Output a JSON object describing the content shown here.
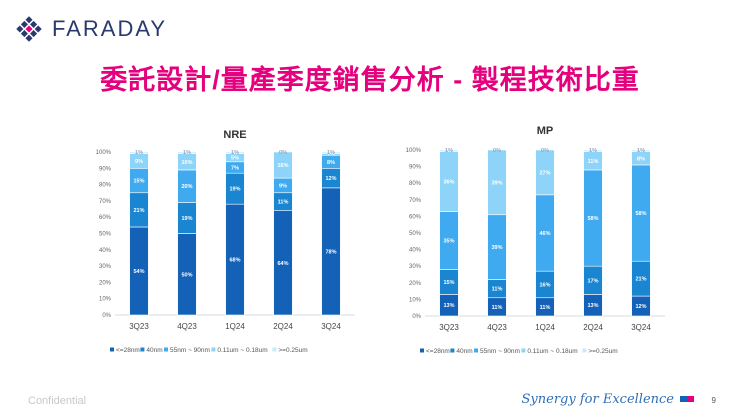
{
  "brand": {
    "name": "FARADAY"
  },
  "slide_title": "委託設計/量產季度銷售分析 - 製程技術比重",
  "footer": {
    "confidential": "Confidential",
    "tagline": "Synergy for Excellence",
    "page_number": "9"
  },
  "colors": {
    "title": "#e5007e",
    "s28": "#1461b8",
    "s40": "#1a86d2",
    "s55": "#40aaf0",
    "s011": "#8ed4f8",
    "s025": "#c5ebfc"
  },
  "chart_data": [
    {
      "type": "bar",
      "stacked": true,
      "title": "NRE",
      "categories": [
        "3Q23",
        "4Q23",
        "1Q24",
        "2Q24",
        "3Q24"
      ],
      "ylim": [
        0,
        100
      ],
      "yticks": [
        "0%",
        "10%",
        "20%",
        "30%",
        "40%",
        "50%",
        "60%",
        "70%",
        "80%",
        "90%",
        "100%"
      ],
      "series": [
        {
          "name": "<=28nm",
          "values": [
            54,
            50,
            68,
            64,
            78
          ],
          "labels": [
            "54%",
            "50%",
            "68%",
            "64%",
            "78%"
          ]
        },
        {
          "name": "40nm",
          "values": [
            21,
            19,
            19,
            11,
            12
          ],
          "labels": [
            "21%",
            "19%",
            "19%",
            "11%",
            "12%"
          ]
        },
        {
          "name": "55nm ~ 90nm",
          "values": [
            15,
            20,
            7,
            9,
            8
          ],
          "labels": [
            "15%",
            "20%",
            "7%",
            "9%",
            "8%"
          ]
        },
        {
          "name": "0.11um ~ 0.18um",
          "values": [
            9,
            10,
            5,
            16,
            1
          ],
          "labels": [
            "9%",
            "10%",
            "5%",
            "16%",
            "1%"
          ]
        },
        {
          "name": ">=0.25um",
          "values": [
            1,
            1,
            1,
            0,
            1
          ],
          "labels": [
            "1%",
            "1%",
            "1%",
            "0%",
            "1%"
          ]
        }
      ],
      "legend": "bottom"
    },
    {
      "type": "bar",
      "stacked": true,
      "title": "MP",
      "categories": [
        "3Q23",
        "4Q23",
        "1Q24",
        "2Q24",
        "3Q24"
      ],
      "ylim": [
        0,
        100
      ],
      "yticks": [
        "0%",
        "10%",
        "20%",
        "30%",
        "40%",
        "50%",
        "60%",
        "70%",
        "80%",
        "90%",
        "100%"
      ],
      "series": [
        {
          "name": "<=28nm",
          "values": [
            13,
            11,
            11,
            13,
            12
          ],
          "labels": [
            "13%",
            "11%",
            "11%",
            "13%",
            "12%"
          ]
        },
        {
          "name": "40nm",
          "values": [
            15,
            11,
            16,
            17,
            21
          ],
          "labels": [
            "15%",
            "11%",
            "16%",
            "17%",
            "21%"
          ]
        },
        {
          "name": "55nm ~ 90nm",
          "values": [
            35,
            39,
            46,
            58,
            58
          ],
          "labels": [
            "35%",
            "39%",
            "46%",
            "58%",
            "58%"
          ]
        },
        {
          "name": "0.11um ~ 0.18um",
          "values": [
            36,
            39,
            27,
            11,
            8
          ],
          "labels": [
            "36%",
            "39%",
            "27%",
            "11%",
            "8%"
          ]
        },
        {
          "name": ">=0.25um",
          "values": [
            1,
            0,
            0,
            1,
            1
          ],
          "labels": [
            "1%",
            "0%",
            "0%",
            "1%",
            "1%"
          ]
        }
      ],
      "legend": "bottom"
    }
  ]
}
